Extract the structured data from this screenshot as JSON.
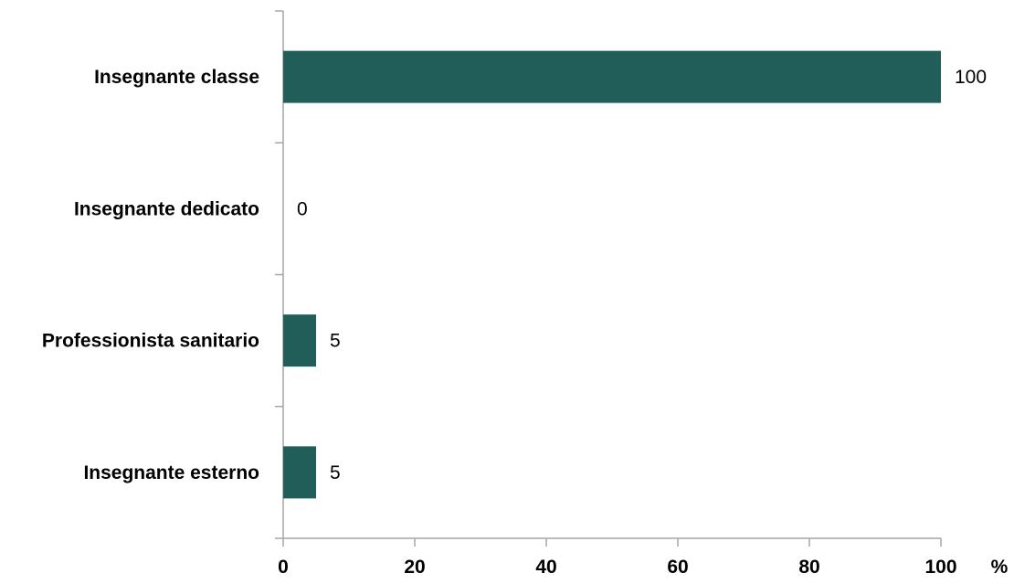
{
  "chart_data": {
    "type": "bar",
    "orientation": "horizontal",
    "categories": [
      "Insegnante classe",
      "Insegnante dedicato",
      "Professionista sanitario",
      "Insegnante esterno"
    ],
    "values": [
      100,
      0,
      5,
      5
    ],
    "data_labels": [
      "100",
      "0",
      "5",
      "5"
    ],
    "xlim": [
      0,
      100
    ],
    "xticks": [
      "0",
      "20",
      "40",
      "60",
      "80",
      "100"
    ],
    "xunit": "%",
    "title": "",
    "xlabel": "",
    "ylabel": "",
    "grid": false,
    "legend": "none",
    "bar_color": "#215e5a",
    "axis_color": "#a6a6a6"
  }
}
